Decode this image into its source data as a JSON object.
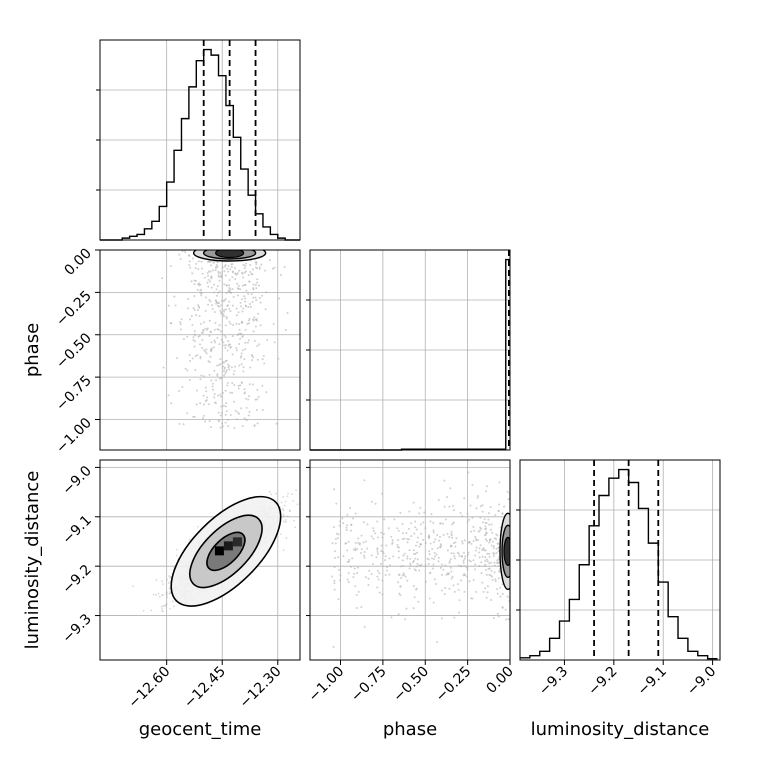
{
  "chart_data": {
    "type": "corner",
    "parameters": [
      "geocent_time",
      "phase",
      "luminosity_distance"
    ],
    "labels": {
      "geocent_time": "geocent_time",
      "phase": "phase",
      "luminosity_distance": "luminosity_distance"
    },
    "ranges": {
      "geocent_time": [
        -12.78,
        -12.24
      ],
      "phase": [
        -1.18,
        0.0
      ],
      "luminosity_distance": [
        -9.39,
        -8.985
      ]
    },
    "ticks": {
      "geocent_time": [
        -12.6,
        -12.45,
        -12.3
      ],
      "phase": [
        -1.0,
        -0.75,
        -0.5,
        -0.25,
        0.0
      ],
      "luminosity_distance": [
        -9.3,
        -9.2,
        -9.1,
        -9.0
      ]
    },
    "tick_labels": {
      "geocent_time": [
        "−12.60",
        "−12.45",
        "−12.30"
      ],
      "phase": [
        "−1.00",
        "−0.75",
        "−0.50",
        "−0.25",
        "0.00"
      ],
      "luminosity_distance": [
        "−9.3",
        "−9.2",
        "−9.1",
        "−9.0"
      ]
    },
    "quantiles": {
      "geocent_time": [
        -12.5,
        -12.43,
        -12.36
      ],
      "phase": [
        0.0,
        0.0,
        0.0
      ],
      "luminosity_distance": [
        -9.24,
        -9.17,
        -9.11
      ]
    },
    "histograms": {
      "geocent_time": {
        "edges": [
          -12.78,
          -12.76,
          -12.74,
          -12.72,
          -12.7,
          -12.68,
          -12.66,
          -12.64,
          -12.62,
          -12.6,
          -12.58,
          -12.56,
          -12.54,
          -12.52,
          -12.5,
          -12.48,
          -12.46,
          -12.44,
          -12.42,
          -12.4,
          -12.38,
          -12.36,
          -12.34,
          -12.32,
          -12.3,
          -12.28,
          -12.26,
          -12.24
        ],
        "counts": [
          0,
          0,
          0,
          1,
          2,
          3,
          6,
          10,
          18,
          31,
          48,
          65,
          82,
          96,
          102,
          99,
          88,
          72,
          55,
          38,
          24,
          14,
          7,
          3,
          1,
          0,
          0
        ]
      },
      "phase": {
        "edges": [
          -1.18,
          -1.12,
          -1.06,
          -1.0,
          -0.94,
          -0.88,
          -0.82,
          -0.76,
          -0.7,
          -0.64,
          -0.58,
          -0.52,
          -0.46,
          -0.4,
          -0.34,
          -0.28,
          -0.22,
          -0.16,
          -0.1,
          -0.04,
          -0.025,
          0.0
        ],
        "counts": [
          0,
          0,
          0,
          0,
          0,
          0,
          0,
          0,
          0,
          0.3,
          0.3,
          0.3,
          0.3,
          0.3,
          0.3,
          0.3,
          0.3,
          0.3,
          0.3,
          0.3,
          70
        ]
      },
      "luminosity_distance": {
        "edges": [
          -9.39,
          -9.37,
          -9.35,
          -9.33,
          -9.31,
          -9.29,
          -9.27,
          -9.25,
          -9.23,
          -9.21,
          -9.19,
          -9.17,
          -9.15,
          -9.13,
          -9.11,
          -9.09,
          -9.07,
          -9.05,
          -9.03,
          -9.01,
          -8.99
        ],
        "counts": [
          0.5,
          1,
          2,
          5,
          9,
          14,
          22,
          31,
          38,
          42,
          44,
          41,
          35,
          27,
          18,
          10,
          5,
          2,
          1,
          0.3
        ]
      }
    },
    "grid": true,
    "contour_levels": 3
  }
}
